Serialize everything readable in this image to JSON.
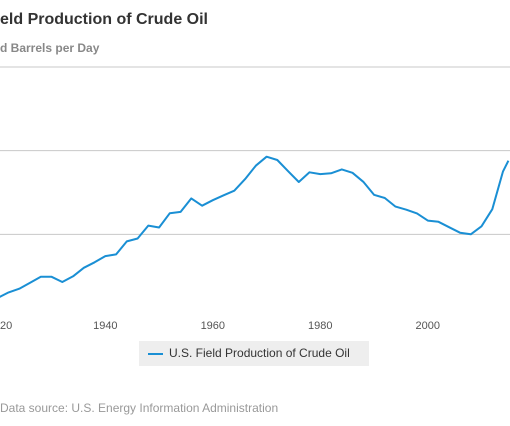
{
  "chart_data": {
    "type": "line",
    "title": "eld Production of Crude Oil",
    "subtitle": "d Barrels per Day",
    "source": "Data source: U.S. Energy Information Administration",
    "x": [
      1920,
      1922,
      1924,
      1926,
      1928,
      1930,
      1932,
      1934,
      1936,
      1938,
      1940,
      1942,
      1944,
      1946,
      1948,
      1950,
      1952,
      1954,
      1956,
      1958,
      1960,
      1962,
      1964,
      1966,
      1968,
      1970,
      1972,
      1974,
      1976,
      1978,
      1980,
      1982,
      1984,
      1986,
      1988,
      1990,
      1992,
      1994,
      1996,
      1998,
      2000,
      2002,
      2004,
      2006,
      2008,
      2010,
      2012,
      2014,
      2015
    ],
    "series": [
      {
        "name": "U.S. Field Production of Crude Oil",
        "color": "#1a8fd4",
        "values": [
          1210,
          1530,
          1750,
          2110,
          2470,
          2460,
          2150,
          2490,
          3000,
          3330,
          3700,
          3800,
          4580,
          4750,
          5520,
          5410,
          6260,
          6340,
          7150,
          6710,
          7040,
          7330,
          7610,
          8300,
          9100,
          9640,
          9440,
          8770,
          8130,
          8710,
          8600,
          8650,
          8880,
          8680,
          8140,
          7360,
          7170,
          6660,
          6470,
          6250,
          5820,
          5750,
          5420,
          5100,
          5000,
          5480,
          6500,
          8760,
          9400
        ]
      }
    ],
    "xlim": [
      1920.4,
      2015.3
    ],
    "xticks": [
      {
        "value": 1920,
        "label": "20"
      },
      1940,
      1960,
      1980,
      2000
    ],
    "ylim": [
      0,
      15000
    ],
    "yticks": [
      5000,
      10000,
      15000
    ],
    "grid": true
  }
}
